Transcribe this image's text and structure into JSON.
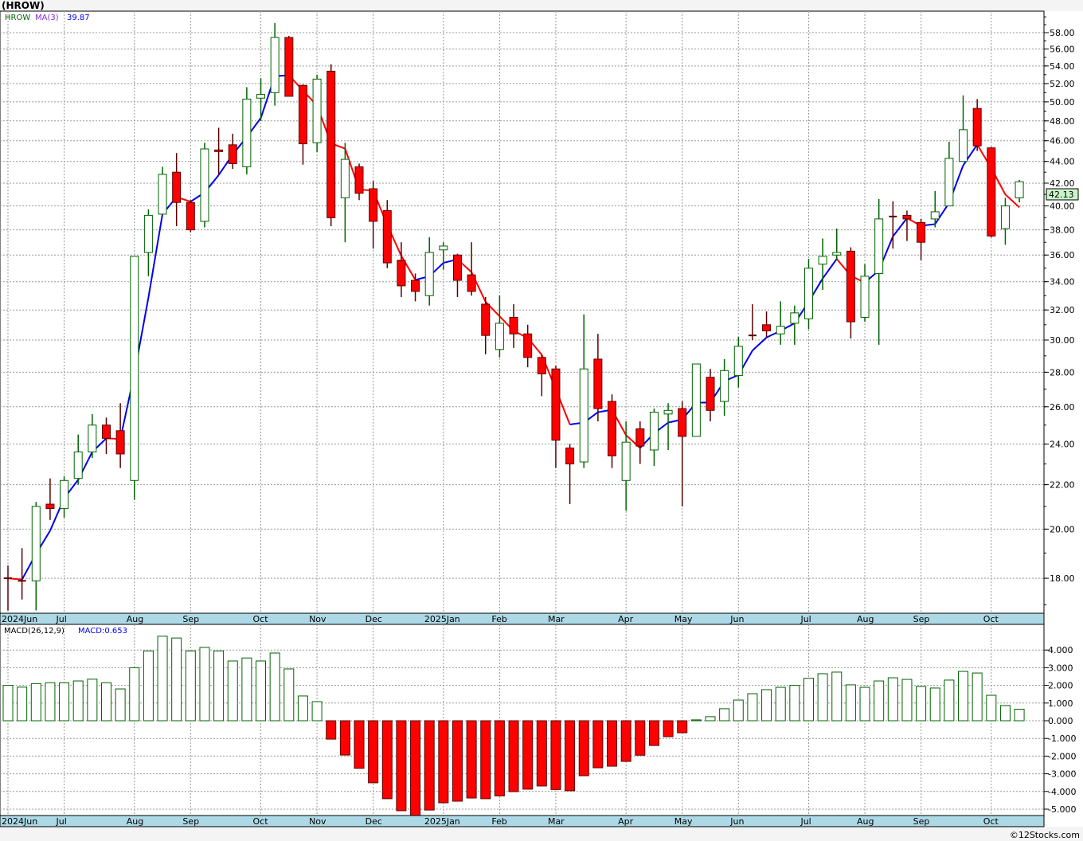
{
  "title": "(HROW)",
  "footer": "©12Stocks.com",
  "colors": {
    "up": "#006400",
    "down_fill": "#ff0000",
    "down_line": "#5a0000",
    "ma_up": "#0000ee",
    "ma_down": "#ff0000",
    "axis_strip": "#add8e6",
    "last_price_bg": "#c8f5c8"
  },
  "chart_data": [
    {
      "type": "candlestick",
      "title": "HROW",
      "scale": "log",
      "ylim": [
        16.7,
        60.7
      ],
      "y_ticks": [
        "18.00",
        "20.00",
        "22.00",
        "24.00",
        "26.00",
        "28.00",
        "30.00",
        "32.00",
        "34.00",
        "36.00",
        "38.00",
        "40.00",
        "42.00",
        "44.00",
        "46.00",
        "48.00",
        "50.00",
        "52.00",
        "54.00",
        "56.00",
        "58.00"
      ],
      "legend": {
        "symbol": "HROW",
        "ma_label": "MA(3)",
        "ma_value": "39.87"
      },
      "last_price": "42.13",
      "x_labels": [
        {
          "label": "2024Jun",
          "index": 0
        },
        {
          "label": "Jul",
          "index": 4
        },
        {
          "label": "Aug",
          "index": 9
        },
        {
          "label": "Sep",
          "index": 13
        },
        {
          "label": "Oct",
          "index": 18
        },
        {
          "label": "Nov",
          "index": 22
        },
        {
          "label": "Dec",
          "index": 26
        },
        {
          "label": "2025Jan",
          "index": 31
        },
        {
          "label": "Feb",
          "index": 35
        },
        {
          "label": "Mar",
          "index": 39
        },
        {
          "label": "Apr",
          "index": 44
        },
        {
          "label": "May",
          "index": 48
        },
        {
          "label": "Jun",
          "index": 52
        },
        {
          "label": "Jul",
          "index": 57
        },
        {
          "label": "Aug",
          "index": 61
        },
        {
          "label": "Sep",
          "index": 65
        },
        {
          "label": "Oct",
          "index": 70
        }
      ],
      "ohlc": [
        [
          18.0,
          18.5,
          16.8,
          18.0
        ],
        [
          17.9,
          19.2,
          17.2,
          17.9
        ],
        [
          17.9,
          21.2,
          16.8,
          21.0
        ],
        [
          21.1,
          22.3,
          20.4,
          20.9
        ],
        [
          20.9,
          22.4,
          20.5,
          22.2
        ],
        [
          22.3,
          24.5,
          22.0,
          23.6
        ],
        [
          23.6,
          25.6,
          23.3,
          25.0
        ],
        [
          25.0,
          25.4,
          23.5,
          24.3
        ],
        [
          24.7,
          26.2,
          22.8,
          23.5
        ],
        [
          22.2,
          35.9,
          21.3,
          35.9
        ],
        [
          36.2,
          39.7,
          34.4,
          39.2
        ],
        [
          39.3,
          43.5,
          39.2,
          42.8
        ],
        [
          43.0,
          44.8,
          38.3,
          40.3
        ],
        [
          40.3,
          40.5,
          37.8,
          38.0
        ],
        [
          38.7,
          45.8,
          38.2,
          45.2
        ],
        [
          45.1,
          47.3,
          42.8,
          45.0
        ],
        [
          45.6,
          46.7,
          43.3,
          43.8
        ],
        [
          43.5,
          51.6,
          42.8,
          50.3
        ],
        [
          50.4,
          52.6,
          48.0,
          50.8
        ],
        [
          51.0,
          59.2,
          49.6,
          57.4
        ],
        [
          57.4,
          57.6,
          50.6,
          50.6
        ],
        [
          51.8,
          51.9,
          43.7,
          45.7
        ],
        [
          45.8,
          53.0,
          44.9,
          52.5
        ],
        [
          53.4,
          54.2,
          38.3,
          39.0
        ],
        [
          40.7,
          45.8,
          37.0,
          44.2
        ],
        [
          43.5,
          43.8,
          40.5,
          41.1
        ],
        [
          41.5,
          42.2,
          36.5,
          38.7
        ],
        [
          39.6,
          40.5,
          35.0,
          35.4
        ],
        [
          35.6,
          37.0,
          32.9,
          33.7
        ],
        [
          34.1,
          34.6,
          32.6,
          33.3
        ],
        [
          33.0,
          37.4,
          32.3,
          36.2
        ],
        [
          36.4,
          37.0,
          34.9,
          36.7
        ],
        [
          36.0,
          36.1,
          32.9,
          34.1
        ],
        [
          34.5,
          37.0,
          33.0,
          33.3
        ],
        [
          32.4,
          32.9,
          29.1,
          30.3
        ],
        [
          29.4,
          33.0,
          28.9,
          31.1
        ],
        [
          31.5,
          32.4,
          29.5,
          30.4
        ],
        [
          30.4,
          31.0,
          28.3,
          28.9
        ],
        [
          28.9,
          29.1,
          26.6,
          27.9
        ],
        [
          28.2,
          28.4,
          22.8,
          24.2
        ],
        [
          23.8,
          24.0,
          21.1,
          23.0
        ],
        [
          23.1,
          31.7,
          22.8,
          28.2
        ],
        [
          28.8,
          30.4,
          25.2,
          25.9
        ],
        [
          26.3,
          26.7,
          22.8,
          23.4
        ],
        [
          22.2,
          25.2,
          20.8,
          24.1
        ],
        [
          24.8,
          25.2,
          23.0,
          23.9
        ],
        [
          23.7,
          25.9,
          22.9,
          25.7
        ],
        [
          25.6,
          26.2,
          23.7,
          25.8
        ],
        [
          25.9,
          26.3,
          21.0,
          24.4
        ],
        [
          24.4,
          28.5,
          24.4,
          28.5
        ],
        [
          27.7,
          28.2,
          25.2,
          25.8
        ],
        [
          26.3,
          28.8,
          25.5,
          28.1
        ],
        [
          27.8,
          30.2,
          27.1,
          29.6
        ],
        [
          30.3,
          32.4,
          30.0,
          30.3
        ],
        [
          31.0,
          31.9,
          30.2,
          30.6
        ],
        [
          30.4,
          32.6,
          29.7,
          30.9
        ],
        [
          31.1,
          32.3,
          29.7,
          31.8
        ],
        [
          31.4,
          35.7,
          30.7,
          35.0
        ],
        [
          35.3,
          37.3,
          33.4,
          35.9
        ],
        [
          36.0,
          38.1,
          35.6,
          36.2
        ],
        [
          36.3,
          36.6,
          30.1,
          31.2
        ],
        [
          31.5,
          35.3,
          31.2,
          34.4
        ],
        [
          34.6,
          40.6,
          29.7,
          38.9
        ],
        [
          39.1,
          40.4,
          36.5,
          39.1
        ],
        [
          39.2,
          39.6,
          37.1,
          38.9
        ],
        [
          38.6,
          38.9,
          35.6,
          37.0
        ],
        [
          38.9,
          41.3,
          38.2,
          39.5
        ],
        [
          40.0,
          45.9,
          40.0,
          44.3
        ],
        [
          44.0,
          50.7,
          44.0,
          47.1
        ],
        [
          49.3,
          50.3,
          45.0,
          45.5
        ],
        [
          45.3,
          45.4,
          37.4,
          37.5
        ],
        [
          38.1,
          40.7,
          36.8,
          40.0
        ],
        [
          40.7,
          42.3,
          40.3,
          42.13
        ]
      ],
      "ma_period": 3
    },
    {
      "type": "bar",
      "title": "MACD(26,12,9)",
      "legend": {
        "label": "MACD(26,12,9)",
        "value_label": "MACD:0.653"
      },
      "ylim": [
        -5.4,
        5.0
      ],
      "y_ticks": [
        "4.000",
        "3.000",
        "2.000",
        "1.000",
        "0.000",
        "-1.000",
        "-2.000",
        "-3.000",
        "-4.000",
        "-5.000"
      ],
      "values": [
        2.0,
        1.9,
        2.1,
        2.15,
        2.15,
        2.25,
        2.35,
        2.15,
        1.8,
        3.0,
        3.95,
        4.78,
        4.68,
        3.95,
        4.15,
        3.95,
        3.38,
        3.55,
        3.38,
        3.83,
        2.93,
        1.4,
        1.08,
        -1.04,
        -1.94,
        -2.69,
        -3.51,
        -4.41,
        -5.09,
        -5.4,
        -5.05,
        -4.64,
        -4.55,
        -4.37,
        -4.41,
        -4.25,
        -4.01,
        -3.87,
        -3.69,
        -3.89,
        -3.96,
        -3.11,
        -2.66,
        -2.57,
        -2.3,
        -1.95,
        -1.4,
        -0.9,
        -0.68,
        0.05,
        0.23,
        0.68,
        1.17,
        1.53,
        1.76,
        1.89,
        2.0,
        2.4,
        2.66,
        2.75,
        2.03,
        1.89,
        2.25,
        2.43,
        2.34,
        1.94,
        1.85,
        2.3,
        2.79,
        2.7,
        1.44,
        0.86,
        0.653
      ]
    }
  ]
}
